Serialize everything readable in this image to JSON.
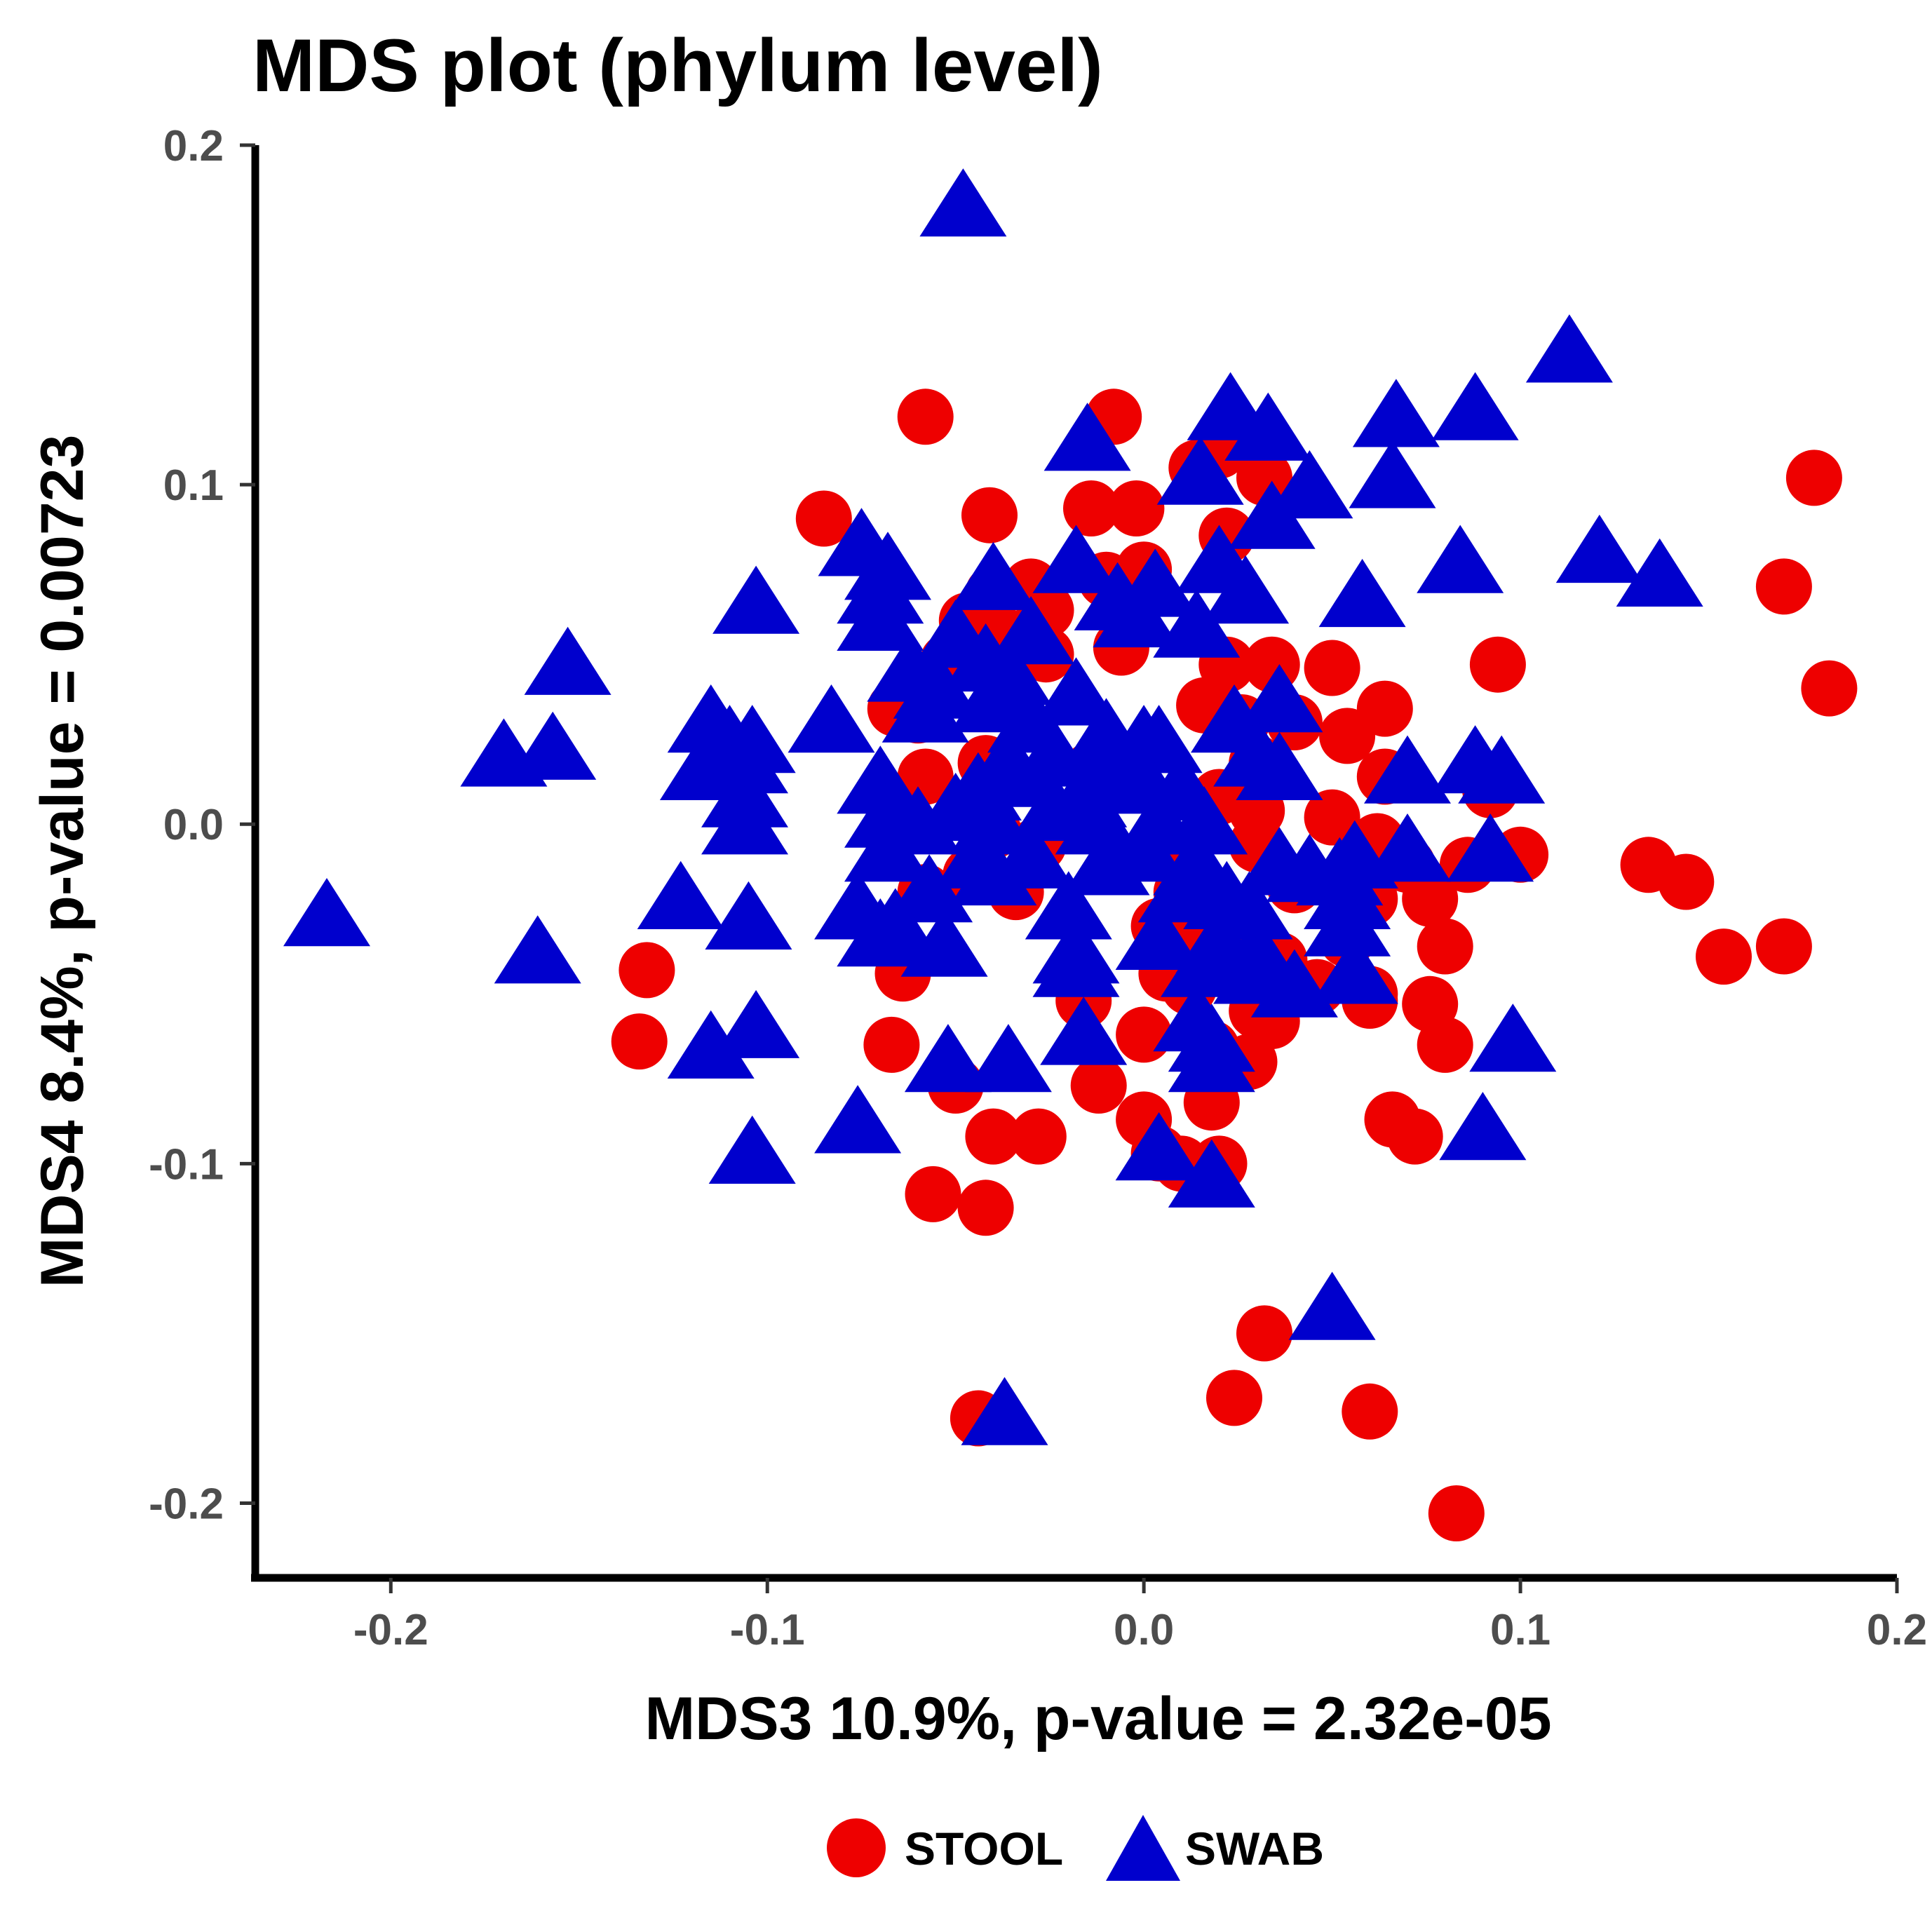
{
  "chart_data": {
    "type": "scatter",
    "title": "MDS plot (phylum level)",
    "xlabel": "MDS3 10.9%, p-value = 2.32e-05",
    "ylabel": "MDS4 8.4%, p-value = 0.00723",
    "xlim": [
      -0.236,
      0.2
    ],
    "ylim": [
      -0.222,
      0.2
    ],
    "xticks": [
      "-0.2",
      "-0.1",
      "0.0",
      "0.1",
      "0.2"
    ],
    "yticks": [
      "0.2",
      "0.1",
      "0.0",
      "-0.1",
      "-0.2"
    ],
    "xtick_values": [
      -0.2,
      -0.1,
      0.0,
      0.1,
      0.2
    ],
    "ytick_values": [
      0.2,
      0.1,
      0.0,
      -0.1,
      -0.2
    ],
    "grid": false,
    "legend_position": "bottom",
    "series": [
      {
        "name": "STOOL",
        "marker": "circle",
        "color": "#ee0000",
        "points": [
          [
            -0.058,
            0.12
          ],
          [
            -0.008,
            0.12
          ],
          [
            -0.085,
            0.09
          ],
          [
            -0.041,
            0.091
          ],
          [
            -0.014,
            0.093
          ],
          [
            -0.002,
            0.093
          ],
          [
            0.014,
            0.105
          ],
          [
            0.02,
            0.11
          ],
          [
            0.032,
            0.102
          ],
          [
            0.022,
            0.085
          ],
          [
            -0.03,
            0.07
          ],
          [
            -0.04,
            0.068
          ],
          [
            -0.026,
            0.063
          ],
          [
            0.0,
            0.075
          ],
          [
            -0.01,
            0.072
          ],
          [
            -0.047,
            0.06
          ],
          [
            -0.036,
            0.055
          ],
          [
            -0.026,
            0.05
          ],
          [
            -0.006,
            0.052
          ],
          [
            -0.052,
            0.048
          ],
          [
            0.022,
            0.047
          ],
          [
            0.034,
            0.047
          ],
          [
            0.05,
            0.046
          ],
          [
            0.094,
            0.047
          ],
          [
            -0.066,
            0.034
          ],
          [
            -0.06,
            0.032
          ],
          [
            0.016,
            0.035
          ],
          [
            0.026,
            0.03
          ],
          [
            0.04,
            0.03
          ],
          [
            0.054,
            0.026
          ],
          [
            0.064,
            0.034
          ],
          [
            -0.042,
            0.018
          ],
          [
            -0.058,
            0.014
          ],
          [
            -0.014,
            0.016
          ],
          [
            0.03,
            0.018
          ],
          [
            0.064,
            0.014
          ],
          [
            0.02,
            0.008
          ],
          [
            0.03,
            0.004
          ],
          [
            0.05,
            0.002
          ],
          [
            0.092,
            0.01
          ],
          [
            -0.064,
            0.0
          ],
          [
            -0.04,
            -0.002
          ],
          [
            -0.028,
            -0.006
          ],
          [
            0.062,
            -0.005
          ],
          [
            0.008,
            -0.01
          ],
          [
            0.03,
            -0.006
          ],
          [
            0.07,
            -0.012
          ],
          [
            0.086,
            -0.012
          ],
          [
            0.1,
            -0.009
          ],
          [
            -0.058,
            -0.02
          ],
          [
            -0.034,
            -0.02
          ],
          [
            -0.046,
            -0.015
          ],
          [
            0.01,
            -0.02
          ],
          [
            0.04,
            -0.018
          ],
          [
            0.06,
            -0.022
          ],
          [
            0.076,
            -0.022
          ],
          [
            0.134,
            -0.012
          ],
          [
            0.144,
            -0.017
          ],
          [
            0.004,
            -0.03
          ],
          [
            0.016,
            -0.035
          ],
          [
            0.054,
            -0.034
          ],
          [
            0.08,
            -0.036
          ],
          [
            0.154,
            -0.039
          ],
          [
            0.17,
            -0.036
          ],
          [
            -0.064,
            -0.044
          ],
          [
            0.006,
            -0.044
          ],
          [
            0.022,
            -0.04
          ],
          [
            0.036,
            -0.04
          ],
          [
            -0.132,
            -0.043
          ],
          [
            0.012,
            -0.048
          ],
          [
            0.046,
            -0.048
          ],
          [
            0.06,
            -0.05
          ],
          [
            0.076,
            -0.053
          ],
          [
            -0.016,
            -0.052
          ],
          [
            0.03,
            -0.055
          ],
          [
            0.034,
            -0.058
          ],
          [
            0.06,
            -0.052
          ],
          [
            -0.134,
            -0.064
          ],
          [
            -0.067,
            -0.065
          ],
          [
            0.0,
            -0.062
          ],
          [
            0.018,
            -0.066
          ],
          [
            0.08,
            -0.065
          ],
          [
            0.028,
            -0.07
          ],
          [
            -0.05,
            -0.077
          ],
          [
            -0.012,
            -0.077
          ],
          [
            0.018,
            -0.082
          ],
          [
            0.0,
            -0.087
          ],
          [
            0.066,
            -0.087
          ],
          [
            0.072,
            -0.092
          ],
          [
            -0.04,
            -0.092
          ],
          [
            -0.028,
            -0.092
          ],
          [
            0.004,
            -0.097
          ],
          [
            0.01,
            -0.1
          ],
          [
            0.02,
            -0.1
          ],
          [
            -0.056,
            -0.109
          ],
          [
            -0.042,
            -0.113
          ],
          [
            0.032,
            -0.15
          ],
          [
            -0.044,
            -0.175
          ],
          [
            0.024,
            -0.169
          ],
          [
            0.06,
            -0.173
          ],
          [
            0.083,
            -0.203
          ],
          [
            0.178,
            0.102
          ],
          [
            0.17,
            0.07
          ],
          [
            0.182,
            0.04
          ]
        ]
      },
      {
        "name": "SWAB",
        "marker": "triangle",
        "color": "#0000cd",
        "points": [
          [
            -0.048,
            0.182
          ],
          [
            0.113,
            0.139
          ],
          [
            0.023,
            0.122
          ],
          [
            0.033,
            0.116
          ],
          [
            0.067,
            0.12
          ],
          [
            0.088,
            0.122
          ],
          [
            -0.015,
            0.113
          ],
          [
            0.015,
            0.103
          ],
          [
            0.044,
            0.099
          ],
          [
            0.066,
            0.102
          ],
          [
            -0.075,
            0.082
          ],
          [
            -0.068,
            0.075
          ],
          [
            -0.103,
            0.065
          ],
          [
            -0.018,
            0.077
          ],
          [
            0.02,
            0.077
          ],
          [
            0.034,
            0.09
          ],
          [
            0.084,
            0.077
          ],
          [
            0.121,
            0.08
          ],
          [
            0.137,
            0.073
          ],
          [
            -0.07,
            0.068
          ],
          [
            -0.04,
            0.072
          ],
          [
            -0.007,
            0.066
          ],
          [
            0.003,
            0.07
          ],
          [
            0.027,
            0.068
          ],
          [
            0.058,
            0.067
          ],
          [
            -0.07,
            0.06
          ],
          [
            -0.05,
            0.055
          ],
          [
            -0.03,
            0.056
          ],
          [
            -0.002,
            0.061
          ],
          [
            0.014,
            0.058
          ],
          [
            -0.062,
            0.045
          ],
          [
            -0.055,
            0.04
          ],
          [
            -0.042,
            0.048
          ],
          [
            -0.036,
            0.044
          ],
          [
            -0.153,
            0.047
          ],
          [
            -0.17,
            0.02
          ],
          [
            -0.157,
            0.022
          ],
          [
            -0.115,
            0.03
          ],
          [
            -0.11,
            0.024
          ],
          [
            -0.104,
            0.024
          ],
          [
            -0.083,
            0.03
          ],
          [
            -0.058,
            0.033
          ],
          [
            -0.04,
            0.036
          ],
          [
            -0.03,
            0.03
          ],
          [
            -0.018,
            0.038
          ],
          [
            -0.01,
            0.026
          ],
          [
            0.0,
            0.024
          ],
          [
            0.024,
            0.03
          ],
          [
            0.036,
            0.036
          ],
          [
            0.03,
            0.02
          ],
          [
            -0.117,
            0.016
          ],
          [
            -0.106,
            0.018
          ],
          [
            -0.036,
            0.018
          ],
          [
            -0.024,
            0.02
          ],
          [
            -0.01,
            0.015
          ],
          [
            0.004,
            0.024
          ],
          [
            0.036,
            0.016
          ],
          [
            0.07,
            0.015
          ],
          [
            0.088,
            0.018
          ],
          [
            0.095,
            0.015
          ],
          [
            -0.106,
            0.008
          ],
          [
            -0.07,
            0.012
          ],
          [
            -0.044,
            0.01
          ],
          [
            -0.036,
            0.014
          ],
          [
            -0.016,
            0.008
          ],
          [
            0.0,
            0.012
          ],
          [
            0.01,
            0.01
          ],
          [
            -0.106,
            0.0
          ],
          [
            -0.068,
            0.002
          ],
          [
            -0.06,
            0.0
          ],
          [
            -0.05,
            0.004
          ],
          [
            -0.04,
            0.0
          ],
          [
            -0.024,
            0.004
          ],
          [
            -0.012,
            0.0
          ],
          [
            0.004,
            0.0
          ],
          [
            0.016,
            0.0
          ],
          [
            -0.068,
            -0.008
          ],
          [
            -0.044,
            -0.01
          ],
          [
            -0.03,
            -0.01
          ],
          [
            -0.01,
            -0.012
          ],
          [
            0.0,
            -0.008
          ],
          [
            0.014,
            -0.012
          ],
          [
            0.036,
            -0.012
          ],
          [
            0.052,
            -0.015
          ],
          [
            0.056,
            -0.01
          ],
          [
            0.07,
            -0.008
          ],
          [
            0.092,
            -0.008
          ],
          [
            -0.057,
            -0.02
          ],
          [
            -0.04,
            -0.015
          ],
          [
            0.01,
            -0.02
          ],
          [
            0.022,
            -0.022
          ],
          [
            0.044,
            -0.014
          ],
          [
            -0.123,
            -0.022
          ],
          [
            -0.105,
            -0.028
          ],
          [
            -0.076,
            -0.025
          ],
          [
            -0.066,
            -0.03
          ],
          [
            -0.02,
            -0.025
          ],
          [
            0.028,
            -0.025
          ],
          [
            0.054,
            -0.022
          ],
          [
            -0.07,
            -0.033
          ],
          [
            -0.053,
            -0.036
          ],
          [
            -0.018,
            -0.038
          ],
          [
            0.004,
            -0.034
          ],
          [
            0.02,
            -0.035
          ],
          [
            0.03,
            -0.038
          ],
          [
            0.054,
            -0.03
          ],
          [
            -0.161,
            -0.038
          ],
          [
            -0.018,
            -0.042
          ],
          [
            0.016,
            -0.042
          ],
          [
            0.03,
            -0.044
          ],
          [
            0.04,
            -0.048
          ],
          [
            0.056,
            -0.044
          ],
          [
            -0.115,
            -0.066
          ],
          [
            -0.103,
            -0.06
          ],
          [
            -0.016,
            -0.062
          ],
          [
            0.014,
            -0.058
          ],
          [
            0.018,
            -0.064
          ],
          [
            0.098,
            -0.064
          ],
          [
            -0.052,
            -0.07
          ],
          [
            -0.036,
            -0.07
          ],
          [
            0.018,
            -0.07
          ],
          [
            -0.076,
            -0.088
          ],
          [
            -0.104,
            -0.097
          ],
          [
            0.09,
            -0.09
          ],
          [
            0.004,
            -0.096
          ],
          [
            0.018,
            -0.104
          ],
          [
            0.05,
            -0.143
          ],
          [
            -0.037,
            -0.174
          ],
          [
            -0.217,
            -0.027
          ]
        ]
      }
    ]
  },
  "legend": {
    "items": [
      {
        "label": "STOOL",
        "marker": "circle",
        "color": "#ee0000"
      },
      {
        "label": "SWAB",
        "marker": "triangle",
        "color": "#0000cd"
      }
    ]
  }
}
